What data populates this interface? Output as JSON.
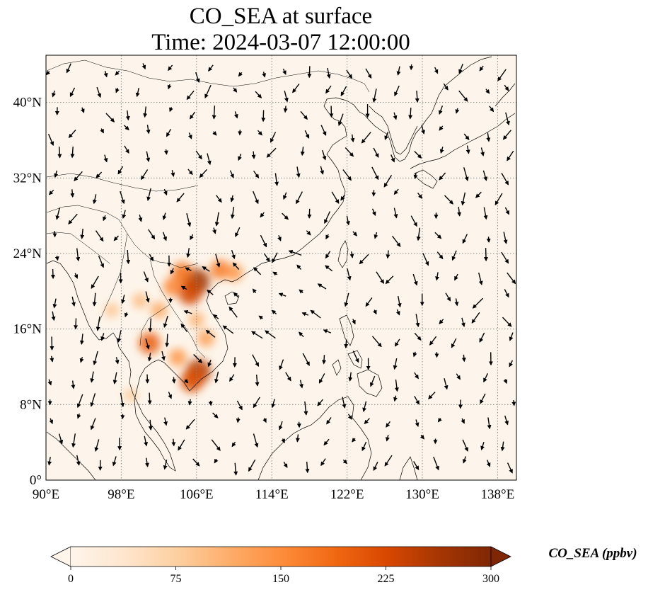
{
  "title_line1": "CO_SEA at surface",
  "title_line2": "Time: 2024-03-07 12:00:00",
  "map": {
    "lon_range": [
      90,
      140
    ],
    "lat_range": [
      0,
      45
    ],
    "lon_ticks": [
      {
        "value": 90,
        "label": "90°E"
      },
      {
        "value": 98,
        "label": "98°E"
      },
      {
        "value": 106,
        "label": "106°E"
      },
      {
        "value": 114,
        "label": "114°E"
      },
      {
        "value": 122,
        "label": "122°E"
      },
      {
        "value": 130,
        "label": "130°E"
      },
      {
        "value": 138,
        "label": "138°E"
      }
    ],
    "lat_ticks": [
      {
        "value": 0,
        "label": "0°"
      },
      {
        "value": 8,
        "label": "8°N"
      },
      {
        "value": 16,
        "label": "16°N"
      },
      {
        "value": 24,
        "label": "24°N"
      },
      {
        "value": 32,
        "label": "32°N"
      },
      {
        "value": 40,
        "label": "40°N"
      }
    ],
    "gridlines": true,
    "background_color": "#fdf5eb",
    "coastline_color": "#000000"
  },
  "co_hotspots": [
    {
      "lon": 106.0,
      "lat": 21.0,
      "value": 270
    },
    {
      "lon": 105.3,
      "lat": 19.8,
      "value": 230
    },
    {
      "lon": 104.5,
      "lat": 22.0,
      "value": 180
    },
    {
      "lon": 103.5,
      "lat": 20.5,
      "value": 160
    },
    {
      "lon": 108.5,
      "lat": 22.3,
      "value": 170
    },
    {
      "lon": 110.0,
      "lat": 22.0,
      "value": 140
    },
    {
      "lon": 102.0,
      "lat": 18.0,
      "value": 120
    },
    {
      "lon": 100.0,
      "lat": 19.0,
      "value": 100
    },
    {
      "lon": 97.0,
      "lat": 18.0,
      "value": 90
    },
    {
      "lon": 101.0,
      "lat": 14.5,
      "value": 200
    },
    {
      "lon": 104.0,
      "lat": 13.0,
      "value": 140
    },
    {
      "lon": 106.2,
      "lat": 11.5,
      "value": 250
    },
    {
      "lon": 105.5,
      "lat": 10.5,
      "value": 220
    },
    {
      "lon": 107.0,
      "lat": 15.0,
      "value": 130
    },
    {
      "lon": 99.0,
      "lat": 9.0,
      "value": 80
    },
    {
      "lon": 106.0,
      "lat": 17.0,
      "value": 110
    }
  ],
  "colorbar": {
    "label": "CO_SEA (ppbv)",
    "min": 0,
    "max": 300,
    "ticks": [
      {
        "value": 0,
        "label": "0"
      },
      {
        "value": 75,
        "label": "75"
      },
      {
        "value": 150,
        "label": "150"
      },
      {
        "value": 225,
        "label": "225"
      },
      {
        "value": 300,
        "label": "300"
      }
    ],
    "colors": [
      "#fff5eb",
      "#fee6ce",
      "#fdd0a2",
      "#fdae6b",
      "#fd8d3c",
      "#f16913",
      "#d94801",
      "#a63603",
      "#7f2704"
    ],
    "extend": "both"
  }
}
